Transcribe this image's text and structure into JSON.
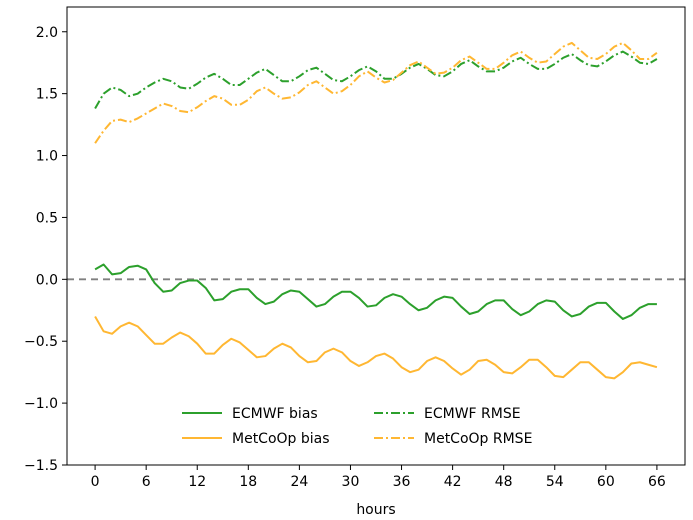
{
  "chart_data": {
    "type": "line",
    "title": "",
    "xlabel": "hours",
    "ylabel": "",
    "xlim": [
      -3.3,
      69.3
    ],
    "ylim": [
      -1.5,
      2.2
    ],
    "xticks": [
      0,
      6,
      12,
      18,
      24,
      30,
      36,
      42,
      48,
      54,
      60,
      66
    ],
    "yticks": [
      -1.5,
      -1.0,
      -0.5,
      0.0,
      0.5,
      1.0,
      1.5,
      2.0
    ],
    "ytick_labels": [
      "−1.5",
      "−1.0",
      "−0.5",
      "0.0",
      "0.5",
      "1.0",
      "1.5",
      "2.0"
    ],
    "hline": {
      "y": 0.0,
      "color": "#808080",
      "style": "dashed"
    },
    "grid": false,
    "legend_position": "lower-center",
    "x": [
      0,
      1,
      2,
      3,
      4,
      5,
      6,
      7,
      8,
      9,
      10,
      11,
      12,
      13,
      14,
      15,
      16,
      17,
      18,
      19,
      20,
      21,
      22,
      23,
      24,
      25,
      26,
      27,
      28,
      29,
      30,
      31,
      32,
      33,
      34,
      35,
      36,
      37,
      38,
      39,
      40,
      41,
      42,
      43,
      44,
      45,
      46,
      47,
      48,
      49,
      50,
      51,
      52,
      53,
      54,
      55,
      56,
      57,
      58,
      59,
      60,
      61,
      62,
      63,
      64,
      65,
      66
    ],
    "series": [
      {
        "name": "ECMWF bias",
        "color": "#2ca02c",
        "style": "solid",
        "values": [
          0.08,
          0.12,
          0.04,
          0.05,
          0.1,
          0.11,
          0.08,
          -0.03,
          -0.1,
          -0.09,
          -0.03,
          -0.01,
          -0.01,
          -0.07,
          -0.17,
          -0.16,
          -0.1,
          -0.08,
          -0.08,
          -0.15,
          -0.2,
          -0.18,
          -0.12,
          -0.09,
          -0.1,
          -0.16,
          -0.22,
          -0.2,
          -0.14,
          -0.1,
          -0.1,
          -0.15,
          -0.22,
          -0.21,
          -0.15,
          -0.12,
          -0.14,
          -0.2,
          -0.25,
          -0.23,
          -0.17,
          -0.14,
          -0.15,
          -0.22,
          -0.28,
          -0.26,
          -0.2,
          -0.17,
          -0.17,
          -0.24,
          -0.29,
          -0.26,
          -0.2,
          -0.17,
          -0.18,
          -0.25,
          -0.3,
          -0.28,
          -0.22,
          -0.19,
          -0.19,
          -0.26,
          -0.32,
          -0.29,
          -0.23,
          -0.2,
          -0.2
        ]
      },
      {
        "name": "MetCoOp bias",
        "color": "#ffb732",
        "style": "solid",
        "values": [
          -0.3,
          -0.42,
          -0.44,
          -0.38,
          -0.35,
          -0.38,
          -0.45,
          -0.52,
          -0.52,
          -0.47,
          -0.43,
          -0.46,
          -0.52,
          -0.6,
          -0.6,
          -0.53,
          -0.48,
          -0.51,
          -0.57,
          -0.63,
          -0.62,
          -0.56,
          -0.52,
          -0.55,
          -0.62,
          -0.67,
          -0.66,
          -0.59,
          -0.56,
          -0.59,
          -0.66,
          -0.7,
          -0.67,
          -0.62,
          -0.6,
          -0.64,
          -0.71,
          -0.75,
          -0.73,
          -0.66,
          -0.63,
          -0.66,
          -0.72,
          -0.77,
          -0.73,
          -0.66,
          -0.65,
          -0.69,
          -0.75,
          -0.76,
          -0.71,
          -0.65,
          -0.65,
          -0.71,
          -0.78,
          -0.79,
          -0.73,
          -0.67,
          -0.67,
          -0.73,
          -0.79,
          -0.8,
          -0.75,
          -0.68,
          -0.67,
          -0.69,
          -0.71
        ]
      },
      {
        "name": "ECMWF RMSE",
        "color": "#2ca02c",
        "style": "dashdot",
        "values": [
          1.38,
          1.5,
          1.55,
          1.53,
          1.48,
          1.5,
          1.55,
          1.59,
          1.62,
          1.6,
          1.55,
          1.54,
          1.58,
          1.63,
          1.66,
          1.62,
          1.57,
          1.57,
          1.62,
          1.67,
          1.7,
          1.65,
          1.6,
          1.6,
          1.64,
          1.69,
          1.71,
          1.66,
          1.61,
          1.6,
          1.64,
          1.69,
          1.72,
          1.68,
          1.62,
          1.62,
          1.66,
          1.71,
          1.74,
          1.7,
          1.65,
          1.64,
          1.68,
          1.74,
          1.77,
          1.72,
          1.68,
          1.68,
          1.71,
          1.76,
          1.79,
          1.74,
          1.7,
          1.7,
          1.74,
          1.79,
          1.82,
          1.77,
          1.73,
          1.72,
          1.76,
          1.81,
          1.84,
          1.8,
          1.75,
          1.74,
          1.78
        ]
      },
      {
        "name": "MetCoOp RMSE",
        "color": "#ffb732",
        "style": "dashdot",
        "values": [
          1.1,
          1.2,
          1.28,
          1.29,
          1.27,
          1.3,
          1.34,
          1.38,
          1.42,
          1.4,
          1.36,
          1.35,
          1.39,
          1.44,
          1.48,
          1.46,
          1.41,
          1.41,
          1.45,
          1.52,
          1.55,
          1.5,
          1.46,
          1.47,
          1.51,
          1.57,
          1.6,
          1.55,
          1.5,
          1.52,
          1.57,
          1.64,
          1.68,
          1.63,
          1.59,
          1.61,
          1.67,
          1.73,
          1.76,
          1.71,
          1.66,
          1.67,
          1.71,
          1.77,
          1.8,
          1.75,
          1.7,
          1.7,
          1.75,
          1.81,
          1.84,
          1.79,
          1.75,
          1.76,
          1.82,
          1.88,
          1.91,
          1.85,
          1.79,
          1.78,
          1.82,
          1.88,
          1.91,
          1.85,
          1.78,
          1.78,
          1.83
        ]
      }
    ]
  }
}
